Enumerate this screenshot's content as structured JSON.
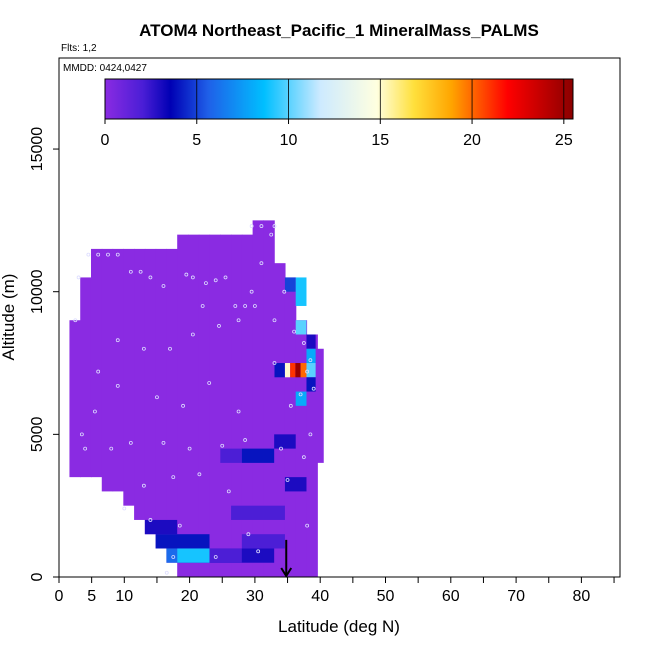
{
  "chart_data": {
    "type": "heatmap",
    "title": "ATOM4 Northeast_Pacific_1 MineralMass_PALMS",
    "flights_label": "Flts: 1,2",
    "dates_label": "MMDD: 0424,0427",
    "xlabel": "Latitude (deg N)",
    "ylabel": "Altitude (m)",
    "xlim": [
      0,
      85
    ],
    "ylim": [
      0,
      18200
    ],
    "x_ticks": [
      0,
      5,
      10,
      20,
      30,
      40,
      50,
      60,
      70,
      80
    ],
    "x_minor_ticks": [
      15,
      25,
      35,
      45,
      55,
      65,
      75,
      85
    ],
    "y_ticks": [
      0,
      5000,
      10000,
      15000
    ],
    "colorbar": {
      "min": 0,
      "max": 25.5,
      "ticks": [
        0,
        5,
        10,
        15,
        20,
        25
      ],
      "stops": [
        [
          0,
          "#8a2be2"
        ],
        [
          0.08,
          "#4b1ed6"
        ],
        [
          0.14,
          "#0000b4"
        ],
        [
          0.22,
          "#1f5fe8"
        ],
        [
          0.34,
          "#00bfff"
        ],
        [
          0.46,
          "#cdeaff"
        ],
        [
          0.58,
          "#ffffe0"
        ],
        [
          0.66,
          "#ffe03c"
        ],
        [
          0.74,
          "#ffa500"
        ],
        [
          0.86,
          "#ff0000"
        ],
        [
          1.0,
          "#8b0000"
        ]
      ]
    },
    "columns": [
      {
        "lat": 1.6,
        "w": 1.65,
        "bottom": 3500,
        "top": 9000
      },
      {
        "lat": 3.25,
        "w": 1.65,
        "bottom": 3500,
        "top": 10500
      },
      {
        "lat": 4.9,
        "w": 1.65,
        "bottom": 3500,
        "top": 11500
      },
      {
        "lat": 6.55,
        "w": 1.65,
        "bottom": 3000,
        "top": 11500
      },
      {
        "lat": 8.2,
        "w": 1.65,
        "bottom": 3000,
        "top": 11500
      },
      {
        "lat": 9.85,
        "w": 1.65,
        "bottom": 2500,
        "top": 11500
      },
      {
        "lat": 11.5,
        "w": 1.65,
        "bottom": 2000,
        "top": 11500
      },
      {
        "lat": 13.15,
        "w": 1.65,
        "bottom": 1500,
        "top": 11500
      },
      {
        "lat": 14.8,
        "w": 1.65,
        "bottom": 1000,
        "top": 11500
      },
      {
        "lat": 16.45,
        "w": 1.65,
        "bottom": 500,
        "top": 11500
      },
      {
        "lat": 18.1,
        "w": 1.65,
        "bottom": 0,
        "top": 12000
      },
      {
        "lat": 19.75,
        "w": 1.65,
        "bottom": 0,
        "top": 12000
      },
      {
        "lat": 21.4,
        "w": 1.65,
        "bottom": 0,
        "top": 12000
      },
      {
        "lat": 23.05,
        "w": 1.65,
        "bottom": 0,
        "top": 12000
      },
      {
        "lat": 24.7,
        "w": 1.65,
        "bottom": 0,
        "top": 12000
      },
      {
        "lat": 26.35,
        "w": 1.65,
        "bottom": 0,
        "top": 12000
      },
      {
        "lat": 28.0,
        "w": 1.65,
        "bottom": 0,
        "top": 12000
      },
      {
        "lat": 29.65,
        "w": 1.65,
        "bottom": 0,
        "top": 12500
      },
      {
        "lat": 31.3,
        "w": 1.65,
        "bottom": 0,
        "top": 12500
      },
      {
        "lat": 32.95,
        "w": 1.65,
        "bottom": 0,
        "top": 11000
      },
      {
        "lat": 34.6,
        "w": 1.65,
        "bottom": 0,
        "top": 10500
      },
      {
        "lat": 36.25,
        "w": 1.65,
        "bottom": 0,
        "top": 9000
      },
      {
        "lat": 37.9,
        "w": 1.65,
        "bottom": 0,
        "top": 8500
      },
      {
        "lat": 39.3,
        "w": 1.15,
        "bottom": 4000,
        "top": 8000
      }
    ],
    "highlight_cells": [
      {
        "x0": 34.6,
        "x1": 36.25,
        "y0": 10000,
        "y1": 10500,
        "v": 5
      },
      {
        "x0": 36.25,
        "x1": 37.9,
        "y0": 9500,
        "y1": 10500,
        "v": 9
      },
      {
        "x0": 36.25,
        "x1": 37.9,
        "y0": 8500,
        "y1": 9000,
        "v": 10
      },
      {
        "x0": 37.9,
        "x1": 39.3,
        "y0": 8000,
        "y1": 8500,
        "v": 3
      },
      {
        "x0": 37.9,
        "x1": 39.3,
        "y0": 7500,
        "y1": 8000,
        "v": 8
      },
      {
        "x0": 33.0,
        "x1": 34.6,
        "y0": 7000,
        "y1": 7500,
        "v": 4
      },
      {
        "x0": 34.6,
        "x1": 35.4,
        "y0": 7000,
        "y1": 7500,
        "v": 15
      },
      {
        "x0": 35.4,
        "x1": 36.2,
        "y0": 7000,
        "y1": 7500,
        "v": 21
      },
      {
        "x0": 36.2,
        "x1": 37.0,
        "y0": 7000,
        "y1": 7500,
        "v": 25
      },
      {
        "x0": 37.0,
        "x1": 37.9,
        "y0": 7000,
        "y1": 7500,
        "v": 20
      },
      {
        "x0": 37.9,
        "x1": 39.3,
        "y0": 7000,
        "y1": 7500,
        "v": 10
      },
      {
        "x0": 36.25,
        "x1": 37.9,
        "y0": 6000,
        "y1": 6500,
        "v": 8
      },
      {
        "x0": 37.9,
        "x1": 39.3,
        "y0": 6500,
        "y1": 7000,
        "v": 4
      },
      {
        "x0": 24.7,
        "x1": 28.0,
        "y0": 4000,
        "y1": 4500,
        "v": 2
      },
      {
        "x0": 28.0,
        "x1": 32.95,
        "y0": 4000,
        "y1": 4500,
        "v": 4
      },
      {
        "x0": 32.95,
        "x1": 36.25,
        "y0": 4500,
        "y1": 5000,
        "v": 3
      },
      {
        "x0": 34.6,
        "x1": 37.9,
        "y0": 3000,
        "y1": 3500,
        "v": 3
      },
      {
        "x0": 26.35,
        "x1": 34.6,
        "y0": 2000,
        "y1": 2500,
        "v": 2
      },
      {
        "x0": 13.15,
        "x1": 18.1,
        "y0": 1500,
        "y1": 2000,
        "v": 3
      },
      {
        "x0": 14.8,
        "x1": 23.05,
        "y0": 1000,
        "y1": 1500,
        "v": 4
      },
      {
        "x0": 18.1,
        "x1": 32.95,
        "y0": 500,
        "y1": 1000,
        "v": 3
      },
      {
        "x0": 16.45,
        "x1": 18.1,
        "y0": 500,
        "y1": 1000,
        "v": 6
      },
      {
        "x0": 18.1,
        "x1": 23.05,
        "y0": 500,
        "y1": 1000,
        "v": 9
      },
      {
        "x0": 23.05,
        "x1": 28.0,
        "y0": 500,
        "y1": 1000,
        "v": 2
      },
      {
        "x0": 28.0,
        "x1": 34.6,
        "y0": 1000,
        "y1": 1500,
        "v": 2
      }
    ],
    "sample_points": [
      [
        2.5,
        9000
      ],
      [
        3.0,
        10500
      ],
      [
        4.5,
        11300
      ],
      [
        6.0,
        11300
      ],
      [
        7.5,
        11300
      ],
      [
        9.0,
        11300
      ],
      [
        11.0,
        10700
      ],
      [
        12.5,
        10700
      ],
      [
        14.0,
        10500
      ],
      [
        16.0,
        10200
      ],
      [
        19.5,
        10600
      ],
      [
        20.5,
        10500
      ],
      [
        22.5,
        10300
      ],
      [
        24.0,
        10400
      ],
      [
        25.5,
        10500
      ],
      [
        27.0,
        9500
      ],
      [
        28.5,
        9500
      ],
      [
        30.0,
        9500
      ],
      [
        22.0,
        9500
      ],
      [
        24.5,
        8800
      ],
      [
        27.5,
        9000
      ],
      [
        29.5,
        12300
      ],
      [
        31.0,
        12300
      ],
      [
        33.0,
        12300
      ],
      [
        34.5,
        10000
      ],
      [
        36.0,
        8600
      ],
      [
        37.5,
        8200
      ],
      [
        38.5,
        7600
      ],
      [
        38.0,
        7200
      ],
      [
        37.0,
        6400
      ],
      [
        38.5,
        5000
      ],
      [
        39.0,
        6600
      ],
      [
        35.5,
        6000
      ],
      [
        34.0,
        4500
      ],
      [
        33.0,
        7500
      ],
      [
        20.5,
        8500
      ],
      [
        17.0,
        8000
      ],
      [
        13.0,
        8000
      ],
      [
        9.0,
        8300
      ],
      [
        6.0,
        7200
      ],
      [
        5.5,
        5800
      ],
      [
        3.5,
        5000
      ],
      [
        4.0,
        4500
      ],
      [
        8.0,
        4500
      ],
      [
        11.0,
        4700
      ],
      [
        16.0,
        4700
      ],
      [
        20.0,
        4500
      ],
      [
        25.0,
        4600
      ],
      [
        28.5,
        4800
      ],
      [
        13.0,
        3200
      ],
      [
        17.5,
        3500
      ],
      [
        21.5,
        3600
      ],
      [
        26.0,
        3000
      ],
      [
        10.0,
        2400
      ],
      [
        14.0,
        2000
      ],
      [
        18.5,
        1800
      ],
      [
        29.0,
        1500
      ],
      [
        38.0,
        1800
      ],
      [
        17.5,
        700
      ],
      [
        24.0,
        700
      ],
      [
        16.5,
        150
      ],
      [
        30.5,
        900
      ],
      [
        32.5,
        12000
      ],
      [
        31.0,
        11000
      ],
      [
        29.5,
        10000
      ],
      [
        33.0,
        9000
      ],
      [
        23.0,
        6800
      ],
      [
        19.0,
        6000
      ],
      [
        15.0,
        6300
      ],
      [
        9.0,
        6700
      ],
      [
        27.5,
        5800
      ],
      [
        37.5,
        4200
      ],
      [
        35.0,
        3400
      ]
    ],
    "arrow": {
      "x": 34.8,
      "y_start": 600,
      "y_end": 0
    }
  }
}
